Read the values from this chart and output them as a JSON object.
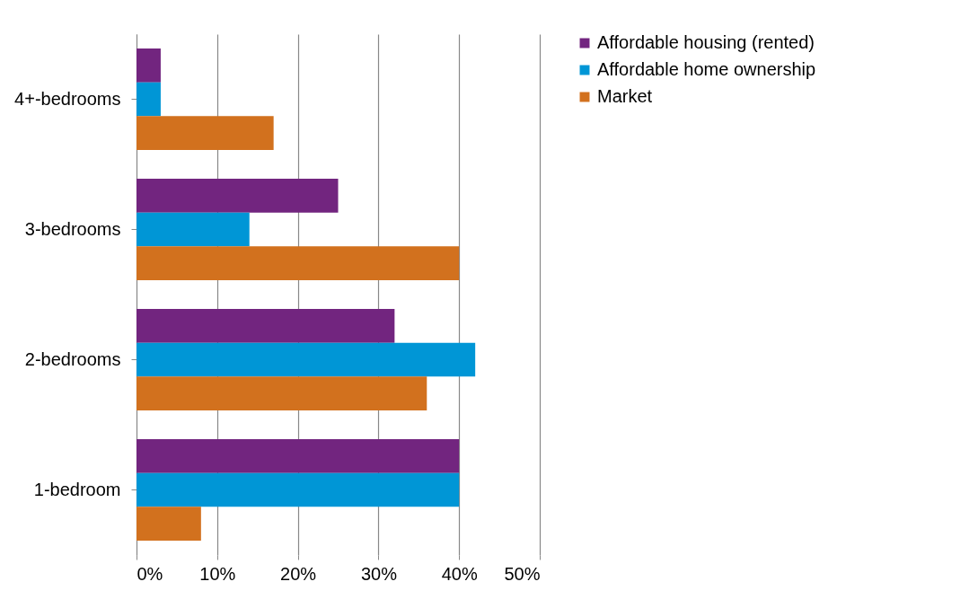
{
  "chart_data": {
    "type": "bar",
    "orientation": "horizontal",
    "categories": [
      "4+-bedrooms",
      "3-bedrooms",
      "2-bedrooms",
      "1-bedroom"
    ],
    "series": [
      {
        "name": "Affordable housing (rented)",
        "color": "#72257f",
        "values": [
          3,
          25,
          32,
          40
        ]
      },
      {
        "name": "Affordable home ownership",
        "color": "#0096d6",
        "values": [
          3,
          14,
          42,
          40
        ]
      },
      {
        "name": "Market",
        "color": "#d2711e",
        "values": [
          17,
          40,
          36,
          8
        ]
      }
    ],
    "xlim": [
      0,
      50
    ],
    "xticks": [
      {
        "value": 0,
        "label": "0%"
      },
      {
        "value": 10,
        "label": "10%"
      },
      {
        "value": 20,
        "label": "20%"
      },
      {
        "value": 30,
        "label": "30%"
      },
      {
        "value": 40,
        "label": "40%"
      },
      {
        "value": 50,
        "label": "50%"
      }
    ],
    "grid": "x",
    "legend": "right"
  }
}
